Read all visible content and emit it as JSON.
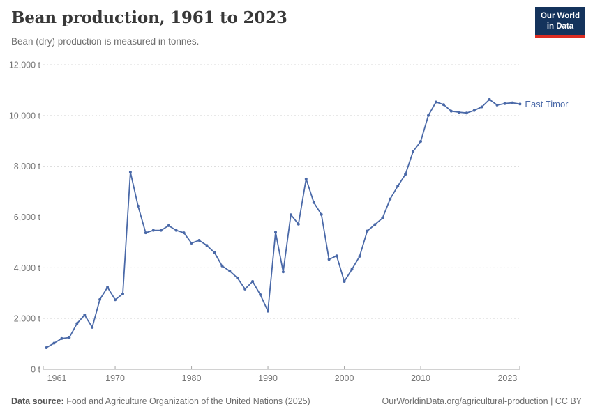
{
  "header": {
    "title": "Bean production, 1961 to 2023",
    "subtitle": "Bean (dry) production is measured in tonnes."
  },
  "logo": {
    "line1": "Our World",
    "line2": "in Data"
  },
  "chart_data": {
    "type": "line",
    "title": "Bean production, 1961 to 2023",
    "subtitle": "Bean (dry) production is measured in tonnes.",
    "unit": "t",
    "entity_label": "East Timor",
    "x": [
      1961,
      1962,
      1963,
      1964,
      1965,
      1966,
      1967,
      1968,
      1969,
      1970,
      1971,
      1972,
      1973,
      1974,
      1975,
      1976,
      1977,
      1978,
      1979,
      1980,
      1981,
      1982,
      1983,
      1984,
      1985,
      1986,
      1987,
      1988,
      1989,
      1990,
      1991,
      1992,
      1993,
      1994,
      1995,
      1996,
      1997,
      1998,
      1999,
      2000,
      2001,
      2002,
      2003,
      2004,
      2005,
      2006,
      2007,
      2008,
      2009,
      2010,
      2011,
      2012,
      2013,
      2014,
      2015,
      2016,
      2017,
      2018,
      2019,
      2020,
      2021,
      2022,
      2023
    ],
    "series": [
      {
        "name": "East Timor",
        "color": "#4a69a8",
        "values": [
          850,
          1030,
          1210,
          1250,
          1800,
          2140,
          1650,
          2750,
          3230,
          2740,
          2970,
          7770,
          6430,
          5380,
          5475,
          5475,
          5660,
          5475,
          5380,
          4970,
          5080,
          4880,
          4600,
          4070,
          3870,
          3600,
          3160,
          3460,
          2940,
          2290,
          5400,
          3840,
          6090,
          5720,
          7500,
          6570,
          6100,
          4330,
          4470,
          3460,
          3940,
          4450,
          5450,
          5700,
          5960,
          6710,
          7220,
          7680,
          8580,
          8980,
          10000,
          10530,
          10430,
          10170,
          10130,
          10100,
          10200,
          10340,
          10630,
          10410,
          10470,
          10500,
          10450
        ]
      }
    ],
    "ylim": [
      0,
      12000
    ],
    "yticks": [
      0,
      2000,
      4000,
      6000,
      8000,
      10000,
      12000
    ],
    "ytick_labels": [
      "0 t",
      "2,000 t",
      "4,000 t",
      "6,000 t",
      "8,000 t",
      "10,000 t",
      "12,000 t"
    ],
    "xticks": [
      1961,
      1970,
      1980,
      1990,
      2000,
      2010,
      2023
    ],
    "xtick_labels": [
      "1961",
      "1970",
      "1980",
      "1990",
      "2000",
      "2010",
      "2023"
    ],
    "grid": "horizontal-dashed",
    "legend_position": "end-of-line",
    "colors": {
      "line": "#4a69a8",
      "gridline": "#dadada",
      "axis": "#a6a6a6",
      "tick_text": "#757575"
    }
  },
  "footer": {
    "source_label": "Data source:",
    "source_text": " Food and Agriculture Organization of the United Nations (2025)",
    "link_text": "OurWorldinData.org/agricultural-production",
    "license_text": " | CC BY"
  }
}
